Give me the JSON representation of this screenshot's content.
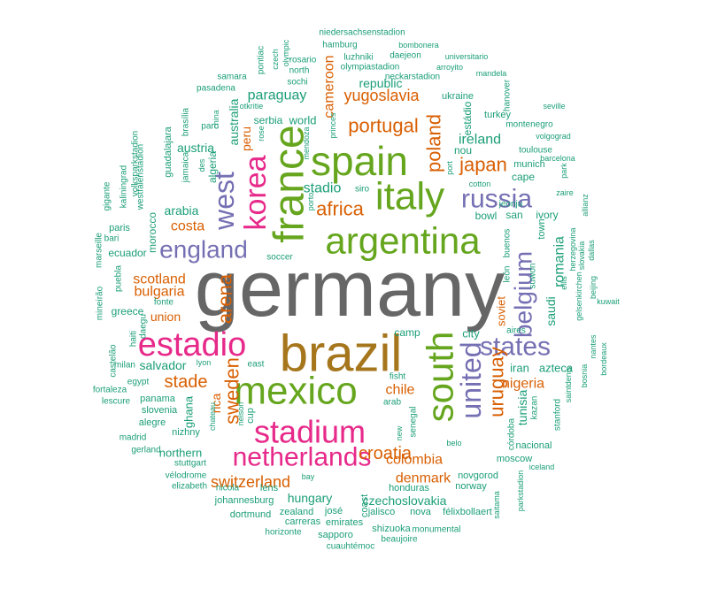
{
  "colors": {
    "teal": "#1b9e77",
    "orange": "#d95f02",
    "purple": "#7570b3",
    "pink": "#e7298a",
    "green": "#66a61e",
    "gold": "#a6761d",
    "gray": "#666666"
  },
  "words": [
    {
      "text": "germany",
      "color": "gray"
    },
    {
      "text": "brazil",
      "color": "gold"
    },
    {
      "text": "argentina",
      "color": "green"
    },
    {
      "text": "mexico",
      "color": "green"
    },
    {
      "text": "france",
      "color": "green"
    },
    {
      "text": "spain",
      "color": "green"
    },
    {
      "text": "italy",
      "color": "green"
    },
    {
      "text": "south",
      "color": "green"
    },
    {
      "text": "stadium",
      "color": "pink"
    },
    {
      "text": "estadio",
      "color": "pink"
    },
    {
      "text": "netherlands",
      "color": "pink"
    },
    {
      "text": "korea",
      "color": "pink"
    },
    {
      "text": "united",
      "color": "purple"
    },
    {
      "text": "england",
      "color": "purple"
    },
    {
      "text": "russia",
      "color": "purple"
    },
    {
      "text": "states",
      "color": "purple"
    },
    {
      "text": "west",
      "color": "purple"
    },
    {
      "text": "belgium",
      "color": "purple"
    },
    {
      "text": "portugal",
      "color": "orange"
    },
    {
      "text": "japan",
      "color": "orange"
    },
    {
      "text": "poland",
      "color": "orange"
    },
    {
      "text": "uruguay",
      "color": "orange"
    },
    {
      "text": "africa",
      "color": "orange"
    },
    {
      "text": "sweden",
      "color": "orange"
    },
    {
      "text": "arena",
      "color": "orange"
    },
    {
      "text": "croatia",
      "color": "orange"
    },
    {
      "text": "stade",
      "color": "orange"
    },
    {
      "text": "yugoslavia",
      "color": "orange"
    },
    {
      "text": "colombia",
      "color": "orange"
    },
    {
      "text": "switzerland",
      "color": "orange"
    },
    {
      "text": "scotland",
      "color": "orange"
    },
    {
      "text": "bulgaria",
      "color": "orange"
    },
    {
      "text": "denmark",
      "color": "orange"
    },
    {
      "text": "nigeria",
      "color": "orange"
    },
    {
      "text": "cameroon",
      "color": "orange"
    },
    {
      "text": "chile",
      "color": "orange"
    },
    {
      "text": "peru",
      "color": "orange"
    },
    {
      "text": "rica",
      "color": "orange"
    },
    {
      "text": "costa",
      "color": "orange"
    },
    {
      "text": "paraguay",
      "color": "teal"
    },
    {
      "text": "republic",
      "color": "teal"
    },
    {
      "text": "austria",
      "color": "teal"
    },
    {
      "text": "australia",
      "color": "teal"
    },
    {
      "text": "ireland",
      "color": "teal"
    },
    {
      "text": "stadio",
      "color": "teal"
    },
    {
      "text": "arabia",
      "color": "teal"
    },
    {
      "text": "romania",
      "color": "teal"
    },
    {
      "text": "saudi",
      "color": "teal"
    },
    {
      "text": "tunisia",
      "color": "teal"
    },
    {
      "text": "hungary",
      "color": "teal"
    },
    {
      "text": "czechoslovakia",
      "color": "teal"
    },
    {
      "text": "soviet",
      "color": "orange"
    },
    {
      "text": "union",
      "color": "orange"
    },
    {
      "text": "salvador",
      "color": "teal"
    },
    {
      "text": "northern",
      "color": "teal"
    },
    {
      "text": "ghana",
      "color": "teal"
    },
    {
      "text": "greece",
      "color": "teal"
    },
    {
      "text": "ecuador",
      "color": "teal"
    },
    {
      "text": "morocco",
      "color": "teal"
    },
    {
      "text": "algeria",
      "color": "teal"
    },
    {
      "text": "guadalajara",
      "color": "teal"
    },
    {
      "text": "world",
      "color": "teal"
    },
    {
      "text": "serbia",
      "color": "teal"
    },
    {
      "text": "iran",
      "color": "teal"
    },
    {
      "text": "azteca",
      "color": "teal"
    },
    {
      "text": "city",
      "color": "teal"
    },
    {
      "text": "camp",
      "color": "teal"
    },
    {
      "text": "cape",
      "color": "teal"
    },
    {
      "text": "town",
      "color": "teal"
    },
    {
      "text": "san",
      "color": "teal"
    },
    {
      "text": "ivory",
      "color": "teal"
    },
    {
      "text": "bowl",
      "color": "teal"
    },
    {
      "text": "nou",
      "color": "teal"
    },
    {
      "text": "estádio",
      "color": "teal"
    },
    {
      "text": "turkey",
      "color": "teal"
    },
    {
      "text": "ukraine",
      "color": "teal"
    },
    {
      "text": "munich",
      "color": "teal"
    },
    {
      "text": "toulouse",
      "color": "teal"
    },
    {
      "text": "montenegro",
      "color": "teal"
    },
    {
      "text": "jeonju",
      "color": "teal"
    },
    {
      "text": "suwon",
      "color": "teal"
    },
    {
      "text": "león",
      "color": "teal"
    },
    {
      "text": "buenos",
      "color": "teal"
    },
    {
      "text": "aires",
      "color": "teal"
    },
    {
      "text": "kazan",
      "color": "teal"
    },
    {
      "text": "córdoba",
      "color": "teal"
    },
    {
      "text": "stanford",
      "color": "teal"
    },
    {
      "text": "nacional",
      "color": "teal"
    },
    {
      "text": "moscow",
      "color": "teal"
    },
    {
      "text": "novgorod",
      "color": "teal"
    },
    {
      "text": "norway",
      "color": "teal"
    },
    {
      "text": "honduras",
      "color": "teal"
    },
    {
      "text": "jalisco",
      "color": "teal"
    },
    {
      "text": "nova",
      "color": "teal"
    },
    {
      "text": "félixbollaert",
      "color": "teal"
    },
    {
      "text": "coast",
      "color": "teal"
    },
    {
      "text": "josé",
      "color": "teal"
    },
    {
      "text": "zealand",
      "color": "teal"
    },
    {
      "text": "emirates",
      "color": "teal"
    },
    {
      "text": "carreras",
      "color": "teal"
    },
    {
      "text": "sapporo",
      "color": "teal"
    },
    {
      "text": "shizuoka",
      "color": "teal"
    },
    {
      "text": "beaujoire",
      "color": "teal"
    },
    {
      "text": "monumental",
      "color": "teal"
    },
    {
      "text": "cuauhtémoc",
      "color": "teal"
    },
    {
      "text": "horizonte",
      "color": "teal"
    },
    {
      "text": "dortmund",
      "color": "teal"
    },
    {
      "text": "johannesburg",
      "color": "teal"
    },
    {
      "text": "nicola",
      "color": "teal"
    },
    {
      "text": "lens",
      "color": "teal"
    },
    {
      "text": "elizabeth",
      "color": "teal"
    },
    {
      "text": "vélodrome",
      "color": "teal"
    },
    {
      "text": "stuttgart",
      "color": "teal"
    },
    {
      "text": "gerland",
      "color": "teal"
    },
    {
      "text": "madrid",
      "color": "teal"
    },
    {
      "text": "alegre",
      "color": "teal"
    },
    {
      "text": "nizhny",
      "color": "teal"
    },
    {
      "text": "slovenia",
      "color": "teal"
    },
    {
      "text": "panama",
      "color": "teal"
    },
    {
      "text": "lescure",
      "color": "teal"
    },
    {
      "text": "fortaleza",
      "color": "teal"
    },
    {
      "text": "egypt",
      "color": "teal"
    },
    {
      "text": "milan",
      "color": "teal"
    },
    {
      "text": "castelão",
      "color": "teal"
    },
    {
      "text": "haiti",
      "color": "teal"
    },
    {
      "text": "daegu",
      "color": "teal"
    },
    {
      "text": "mineirão",
      "color": "teal"
    },
    {
      "text": "fonte",
      "color": "teal"
    },
    {
      "text": "puebla",
      "color": "teal"
    },
    {
      "text": "marseille",
      "color": "teal"
    },
    {
      "text": "bari",
      "color": "teal"
    },
    {
      "text": "paris",
      "color": "teal"
    },
    {
      "text": "gigante",
      "color": "teal"
    },
    {
      "text": "kaliningrad",
      "color": "teal"
    },
    {
      "text": "westfalenstadion",
      "color": "teal"
    },
    {
      "text": "volksparkstadion",
      "color": "teal"
    },
    {
      "text": "jamaica",
      "color": "teal"
    },
    {
      "text": "des",
      "color": "teal"
    },
    {
      "text": "china",
      "color": "teal"
    },
    {
      "text": "parc",
      "color": "teal"
    },
    {
      "text": "brasília",
      "color": "teal"
    },
    {
      "text": "pasadena",
      "color": "teal"
    },
    {
      "text": "samara",
      "color": "teal"
    },
    {
      "text": "pontiac",
      "color": "teal"
    },
    {
      "text": "czech",
      "color": "teal"
    },
    {
      "text": "olympic",
      "color": "teal"
    },
    {
      "text": "otkritie",
      "color": "teal"
    },
    {
      "text": "rose",
      "color": "teal"
    },
    {
      "text": "mendoza",
      "color": "teal"
    },
    {
      "text": "princes",
      "color": "teal"
    },
    {
      "text": "porto",
      "color": "teal"
    },
    {
      "text": "siro",
      "color": "teal"
    },
    {
      "text": "soccer",
      "color": "teal"
    },
    {
      "text": "sochi",
      "color": "teal"
    },
    {
      "text": "north",
      "color": "teal"
    },
    {
      "text": "rosario",
      "color": "teal"
    },
    {
      "text": "hamburg",
      "color": "teal"
    },
    {
      "text": "luzhniki",
      "color": "teal"
    },
    {
      "text": "daejeon",
      "color": "teal"
    },
    {
      "text": "olympiastadion",
      "color": "teal"
    },
    {
      "text": "neckarstadion",
      "color": "teal"
    },
    {
      "text": "niedersachsenstadion",
      "color": "teal"
    },
    {
      "text": "bombonera",
      "color": "teal"
    },
    {
      "text": "universitario",
      "color": "teal"
    },
    {
      "text": "arroyito",
      "color": "teal"
    },
    {
      "text": "mandela",
      "color": "teal"
    },
    {
      "text": "hanover",
      "color": "teal"
    },
    {
      "text": "seville",
      "color": "teal"
    },
    {
      "text": "volgograd",
      "color": "teal"
    },
    {
      "text": "barcelona",
      "color": "teal"
    },
    {
      "text": "park",
      "color": "teal"
    },
    {
      "text": "zaire",
      "color": "teal"
    },
    {
      "text": "allianz",
      "color": "teal"
    },
    {
      "text": "herzegovina",
      "color": "teal"
    },
    {
      "text": "slovakia",
      "color": "teal"
    },
    {
      "text": "dallas",
      "color": "teal"
    },
    {
      "text": "ellis",
      "color": "teal"
    },
    {
      "text": "gelsenkirchen",
      "color": "teal"
    },
    {
      "text": "beijing",
      "color": "teal"
    },
    {
      "text": "kuwait",
      "color": "teal"
    },
    {
      "text": "bordeaux",
      "color": "teal"
    },
    {
      "text": "nantes",
      "color": "teal"
    },
    {
      "text": "bosnia",
      "color": "teal"
    },
    {
      "text": "saintdenis",
      "color": "teal"
    },
    {
      "text": "iceland",
      "color": "teal"
    },
    {
      "text": "saitama",
      "color": "teal"
    },
    {
      "text": "parkstadion",
      "color": "teal"
    },
    {
      "text": "belo",
      "color": "teal"
    },
    {
      "text": "senegal",
      "color": "teal"
    },
    {
      "text": "new",
      "color": "teal"
    },
    {
      "text": "fisht",
      "color": "teal"
    },
    {
      "text": "arab",
      "color": "teal"
    },
    {
      "text": "bay",
      "color": "teal"
    },
    {
      "text": "east",
      "color": "teal"
    },
    {
      "text": "lyon",
      "color": "teal"
    },
    {
      "text": "chateau",
      "color": "teal"
    },
    {
      "text": "nelson",
      "color": "teal"
    },
    {
      "text": "cup",
      "color": "teal"
    },
    {
      "text": "port",
      "color": "teal"
    },
    {
      "text": "cotton",
      "color": "teal"
    }
  ]
}
